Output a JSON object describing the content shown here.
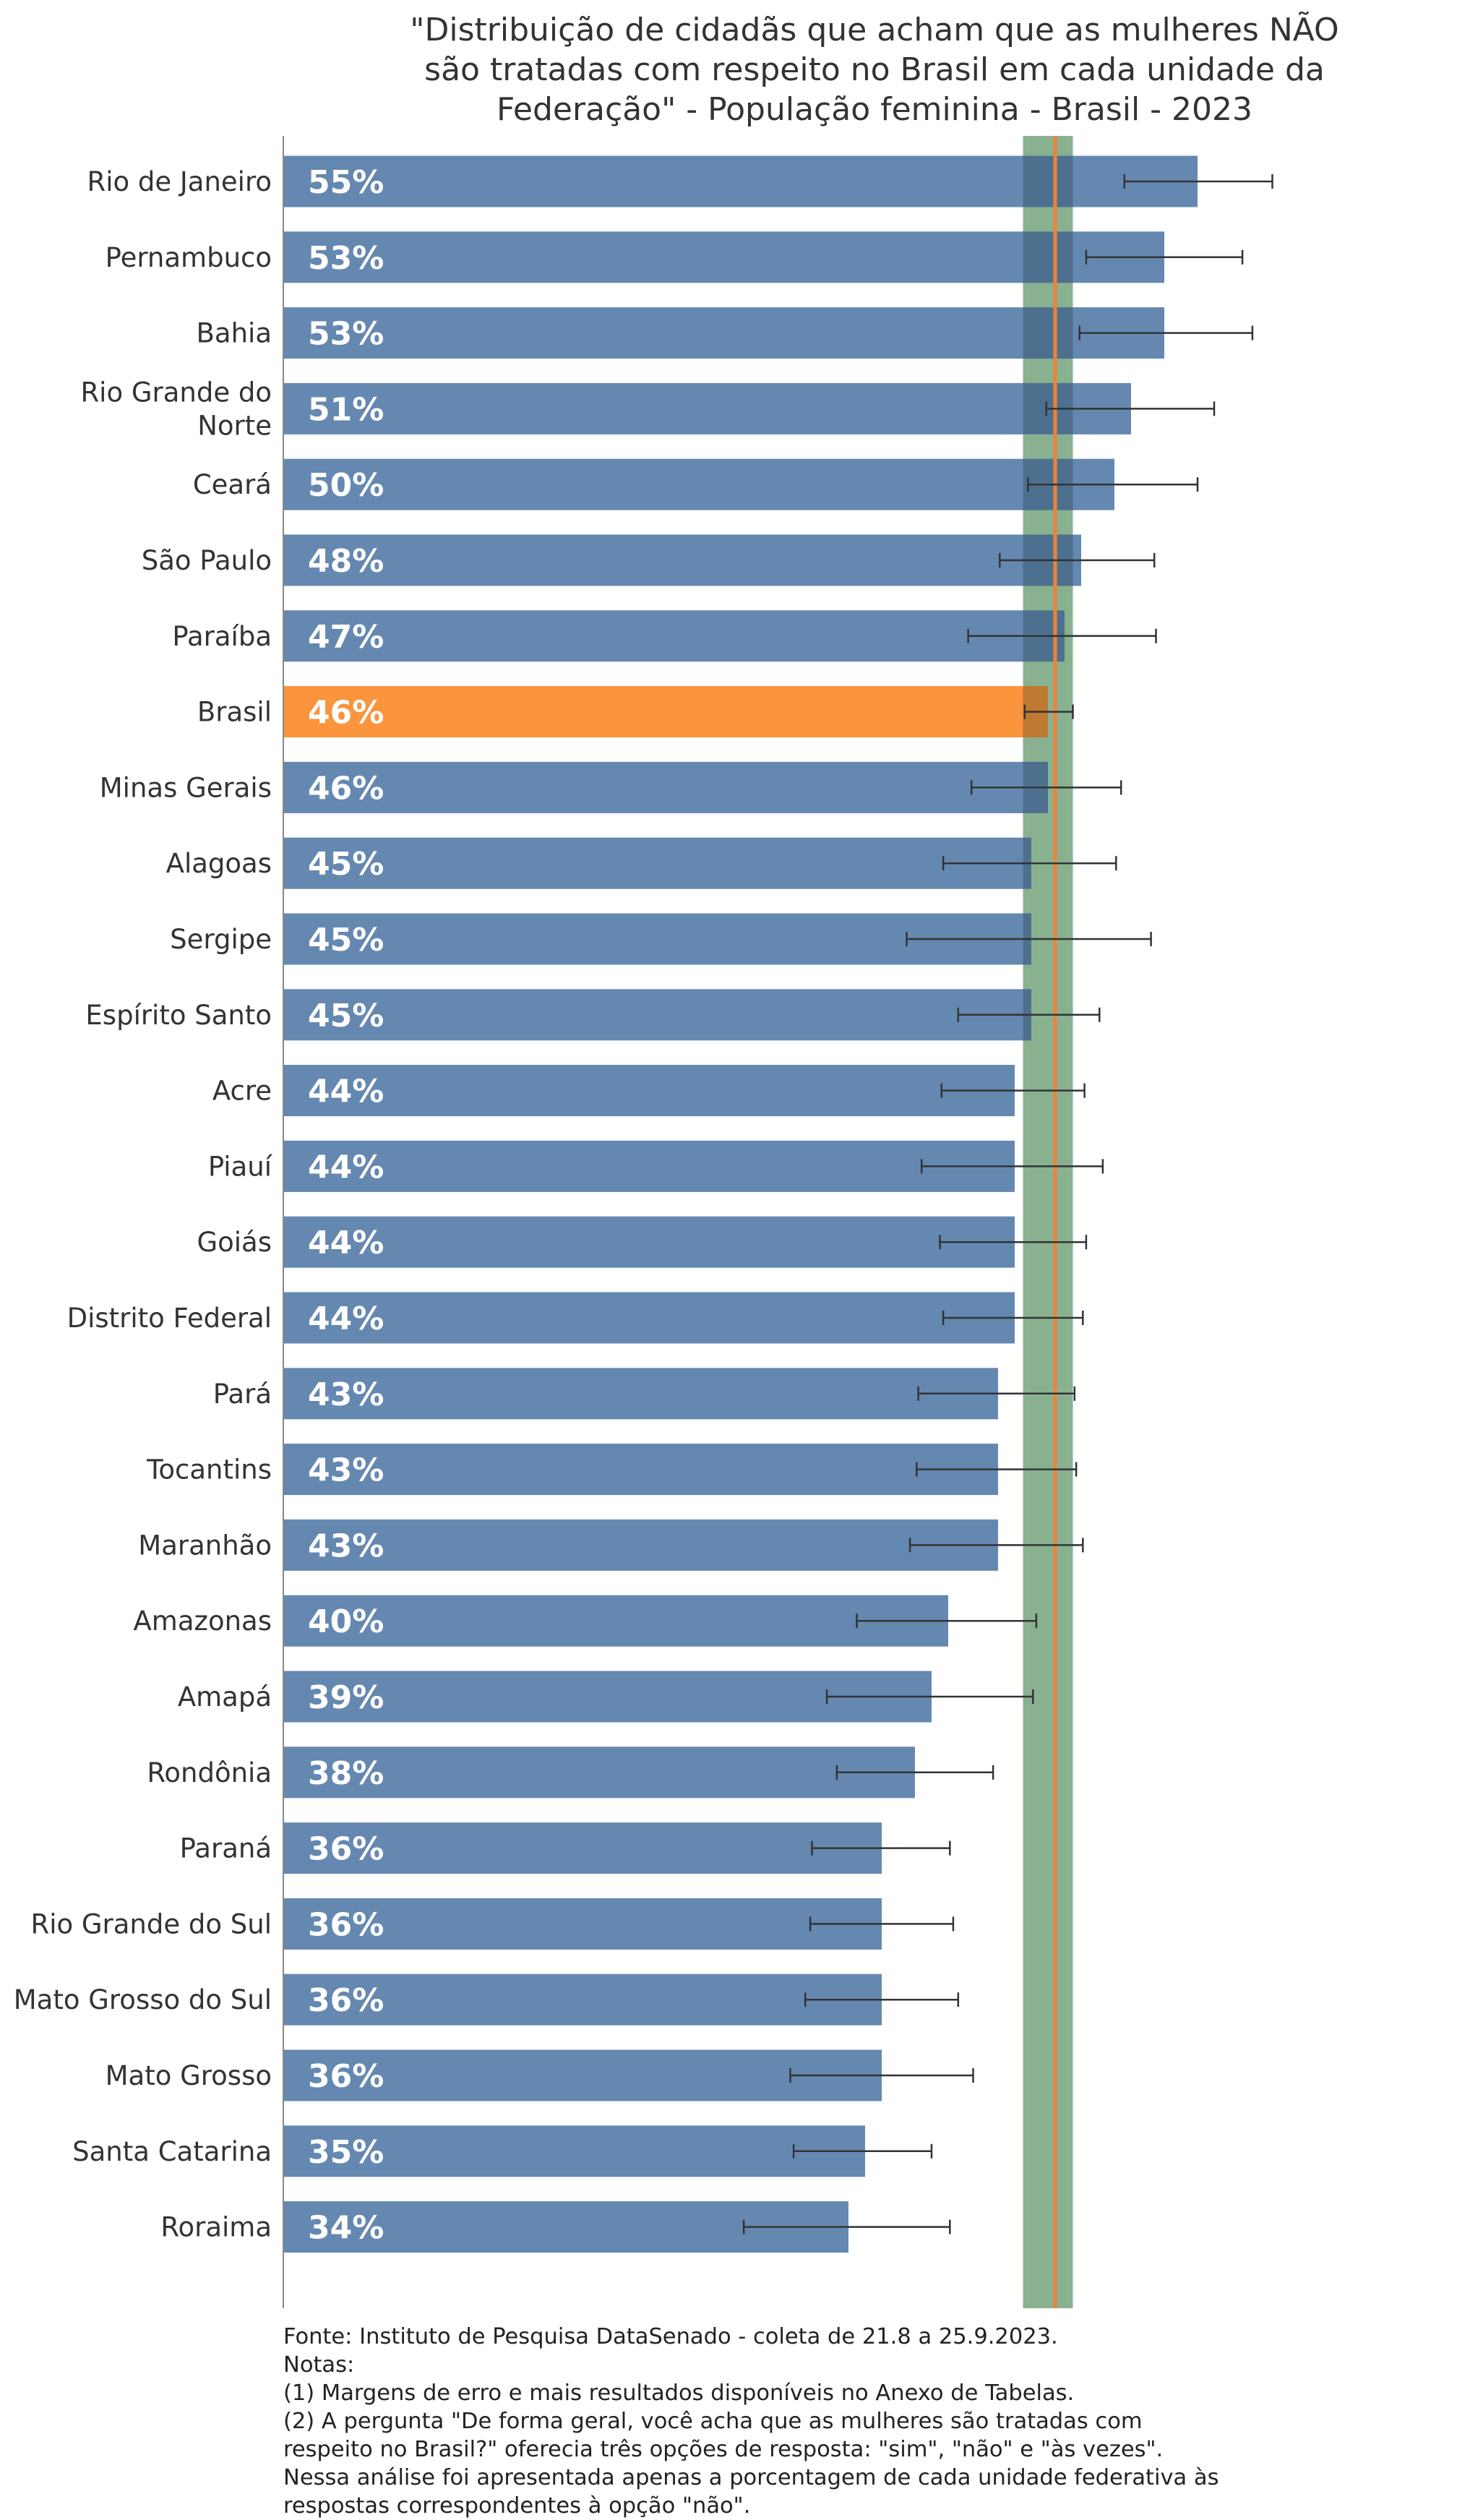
{
  "chart_data": {
    "type": "bar",
    "orientation": "horizontal",
    "title": [
      "\"Distribuição de cidadãs que acham que as mulheres NÃO",
      "são tratadas com respeito no Brasil em cada unidade da",
      "Federação\" - População feminina - Brasil - 2023"
    ],
    "xlim": [
      0,
      100
    ],
    "grid": false,
    "reference": {
      "value": 46,
      "band": [
        44.5,
        47.5
      ]
    },
    "categories": [
      [
        "Rio de Janeiro"
      ],
      [
        "Pernambuco"
      ],
      [
        "Bahia"
      ],
      [
        "Rio Grande do",
        "Norte"
      ],
      [
        "Ceará"
      ],
      [
        "São Paulo"
      ],
      [
        "Paraíba"
      ],
      [
        "Brasil"
      ],
      [
        "Minas Gerais"
      ],
      [
        "Alagoas"
      ],
      [
        "Sergipe"
      ],
      [
        "Espírito Santo"
      ],
      [
        "Acre"
      ],
      [
        "Piauí"
      ],
      [
        "Goiás"
      ],
      [
        "Distrito Federal"
      ],
      [
        "Pará"
      ],
      [
        "Tocantins"
      ],
      [
        "Maranhão"
      ],
      [
        "Amazonas"
      ],
      [
        "Amapá"
      ],
      [
        "Rondônia"
      ],
      [
        "Paraná"
      ],
      [
        "Rio Grande do Sul"
      ],
      [
        "Mato Grosso do Sul"
      ],
      [
        "Mato Grosso"
      ],
      [
        "Santa Catarina"
      ],
      [
        "Roraima"
      ]
    ],
    "values": [
      55,
      53,
      53,
      51,
      50,
      48,
      47,
      46,
      46,
      45,
      45,
      45,
      44,
      44,
      44,
      44,
      43,
      43,
      43,
      40,
      39,
      38,
      36,
      36,
      36,
      36,
      35,
      34
    ],
    "value_labels": [
      "55%",
      "53%",
      "53%",
      "51%",
      "50%",
      "48%",
      "47%",
      "46%",
      "46%",
      "45%",
      "45%",
      "45%",
      "44%",
      "44%",
      "44%",
      "44%",
      "43%",
      "43%",
      "43%",
      "40%",
      "39%",
      "38%",
      "36%",
      "36%",
      "36%",
      "36%",
      "35%",
      "34%"
    ],
    "error_low": [
      50.6,
      48.3,
      47.9,
      45.9,
      44.8,
      43.1,
      41.2,
      44.6,
      41.4,
      39.7,
      37.5,
      40.6,
      39.6,
      38.4,
      39.5,
      39.7,
      38.2,
      38.1,
      37.7,
      34.5,
      32.7,
      33.3,
      31.8,
      31.7,
      31.4,
      30.5,
      30.7,
      27.7
    ],
    "error_high": [
      59.5,
      57.7,
      58.3,
      56.0,
      55.0,
      52.4,
      52.5,
      47.5,
      50.4,
      50.1,
      52.2,
      49.1,
      48.2,
      49.3,
      48.3,
      48.1,
      47.6,
      47.7,
      48.1,
      45.3,
      45.1,
      42.7,
      40.1,
      40.3,
      40.6,
      41.5,
      39.0,
      40.1
    ],
    "colors": {
      "bar": "#6588b1",
      "highlight": "#fa943d",
      "reference_line": "#f08236",
      "band": "#b4d7b2",
      "error": "#333333"
    },
    "highlight": "Brasil"
  },
  "notes": [
    "Fonte: Instituto de Pesquisa DataSenado - coleta de 21.8 a 25.9.2023.",
    "Notas:",
    "(1) Margens de erro e mais resultados disponíveis no Anexo de Tabelas.",
    "(2) A pergunta \"De forma geral, você acha que as mulheres são tratadas com respeito no Brasil?\" oferecia três opções de resposta: \"sim\", \"não\" e \"às vezes\". Nessa análise foi apresentada apenas a porcentagem de cada unidade federativa às respostas correspondentes à opção \"não\"."
  ]
}
